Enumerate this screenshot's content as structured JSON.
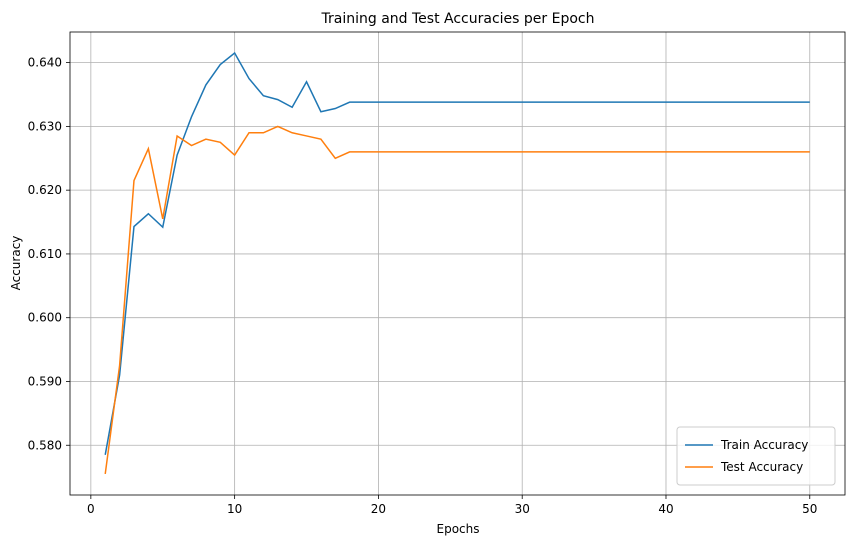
{
  "chart_data": {
    "type": "line",
    "title": "Training and Test Accuracies per Epoch",
    "x_label": "Epochs",
    "y_label": "Accuracy",
    "x": [
      1,
      2,
      3,
      4,
      5,
      6,
      7,
      8,
      9,
      10,
      11,
      12,
      13,
      14,
      15,
      16,
      17,
      18,
      19,
      20,
      21,
      22,
      23,
      24,
      25,
      26,
      27,
      28,
      29,
      30,
      31,
      32,
      33,
      34,
      35,
      36,
      37,
      38,
      39,
      40,
      41,
      42,
      43,
      44,
      45,
      46,
      47,
      48,
      49,
      50
    ],
    "series": [
      {
        "name": "Train Accuracy",
        "color": "#1f77b4",
        "values": [
          0.5785,
          0.591,
          0.6143,
          0.6163,
          0.6142,
          0.6255,
          0.6315,
          0.6365,
          0.6397,
          0.6415,
          0.6375,
          0.6348,
          0.6342,
          0.633,
          0.637,
          0.6323,
          0.6328,
          0.6338,
          0.6338,
          0.6338,
          0.6338,
          0.6338,
          0.6338,
          0.6338,
          0.6338,
          0.6338,
          0.6338,
          0.6338,
          0.6338,
          0.6338,
          0.6338,
          0.6338,
          0.6338,
          0.6338,
          0.6338,
          0.6338,
          0.6338,
          0.6338,
          0.6338,
          0.6338,
          0.6338,
          0.6338,
          0.6338,
          0.6338,
          0.6338,
          0.6338,
          0.6338,
          0.6338,
          0.6338,
          0.6338
        ]
      },
      {
        "name": "Test Accuracy",
        "color": "#ff7f0e",
        "values": [
          0.5755,
          0.5925,
          0.6215,
          0.6265,
          0.6155,
          0.6285,
          0.627,
          0.628,
          0.6275,
          0.6255,
          0.629,
          0.629,
          0.63,
          0.629,
          0.6285,
          0.628,
          0.625,
          0.626,
          0.626,
          0.626,
          0.626,
          0.626,
          0.626,
          0.626,
          0.626,
          0.626,
          0.626,
          0.626,
          0.626,
          0.626,
          0.626,
          0.626,
          0.626,
          0.626,
          0.626,
          0.626,
          0.626,
          0.626,
          0.626,
          0.626,
          0.626,
          0.626,
          0.626,
          0.626,
          0.626,
          0.626,
          0.626,
          0.626,
          0.626,
          0.626
        ]
      }
    ],
    "xlim": [
      -1.45,
      52.45
    ],
    "xticks": [
      0,
      10,
      20,
      30,
      40,
      50
    ],
    "ylim": [
      0.5722,
      0.6448
    ],
    "yticks": [
      {
        "value": 0.58,
        "label": "0.580"
      },
      {
        "value": 0.59,
        "label": "0.590"
      },
      {
        "value": 0.6,
        "label": "0.600"
      },
      {
        "value": 0.61,
        "label": "0.610"
      },
      {
        "value": 0.62,
        "label": "0.620"
      },
      {
        "value": 0.63,
        "label": "0.630"
      },
      {
        "value": 0.64,
        "label": "0.640"
      }
    ],
    "grid": true,
    "legend_position": "lower right"
  }
}
